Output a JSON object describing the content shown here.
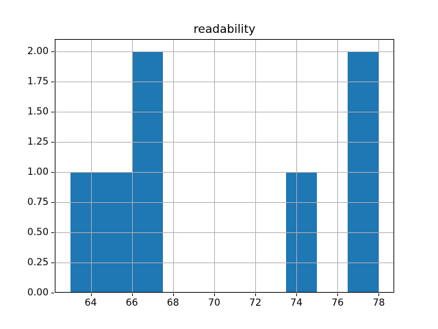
{
  "figure": {
    "background": "#ffffff"
  },
  "chart_data": {
    "type": "bar",
    "subtype": "histogram",
    "title": "readability",
    "xlabel": "",
    "ylabel": "",
    "bin_edges": [
      63.0,
      64.5,
      66.0,
      67.5,
      69.0,
      70.5,
      72.0,
      73.5,
      75.0,
      76.5,
      78.0
    ],
    "counts": [
      1,
      1,
      2,
      0,
      0,
      0,
      0,
      1,
      0,
      2
    ],
    "xlim": [
      62.25,
      78.75
    ],
    "ylim": [
      0,
      2.1
    ],
    "x_ticks": [
      64,
      66,
      68,
      70,
      72,
      74,
      76,
      78
    ],
    "x_tick_labels": [
      "64",
      "66",
      "68",
      "70",
      "72",
      "74",
      "76",
      "78"
    ],
    "y_ticks": [
      0,
      0.25,
      0.5,
      0.75,
      1.0,
      1.25,
      1.5,
      1.75,
      2.0
    ],
    "y_tick_labels": [
      "0.00",
      "0.25",
      "0.50",
      "0.75",
      "1.00",
      "1.25",
      "1.50",
      "1.75",
      "2.00"
    ],
    "grid": true,
    "grid_above_bars": true,
    "legend": null,
    "colors": {
      "bar": "#1f77b4",
      "grid": "#b0b0b0",
      "spine": "#000000",
      "text": "#000000",
      "background": "#ffffff"
    }
  }
}
